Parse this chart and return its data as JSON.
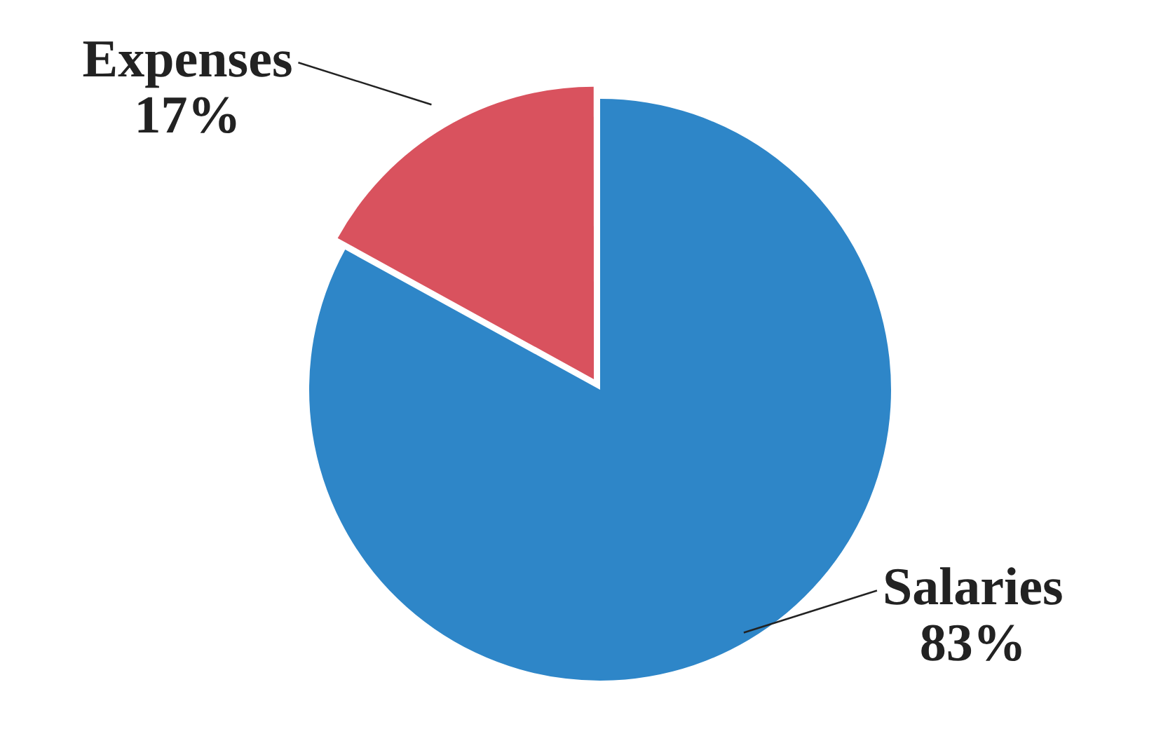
{
  "chart_data": {
    "type": "pie",
    "categories": [
      "Expenses",
      "Salaries"
    ],
    "values": [
      17,
      83
    ],
    "colors": [
      "#d9525e",
      "#2e86c8"
    ],
    "value_labels": [
      "17%",
      "83%"
    ]
  }
}
